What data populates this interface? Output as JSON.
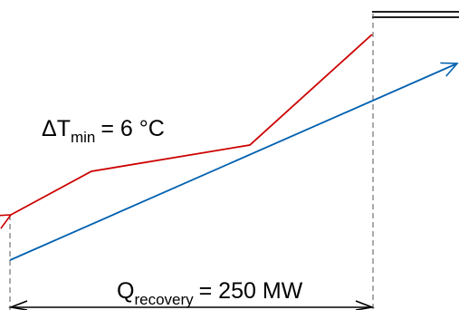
{
  "diagram": {
    "delta_t": {
      "symbol": "ΔT",
      "subscript": "min",
      "equals": "= 6 °C"
    },
    "q_recovery": {
      "symbol": "Q",
      "subscript": "recovery",
      "equals": "= 250 MW"
    },
    "colors": {
      "hot_stream": "#cc0000",
      "cold_stream": "#0060b0",
      "annotation": "#000000",
      "guide": "#555555"
    }
  }
}
